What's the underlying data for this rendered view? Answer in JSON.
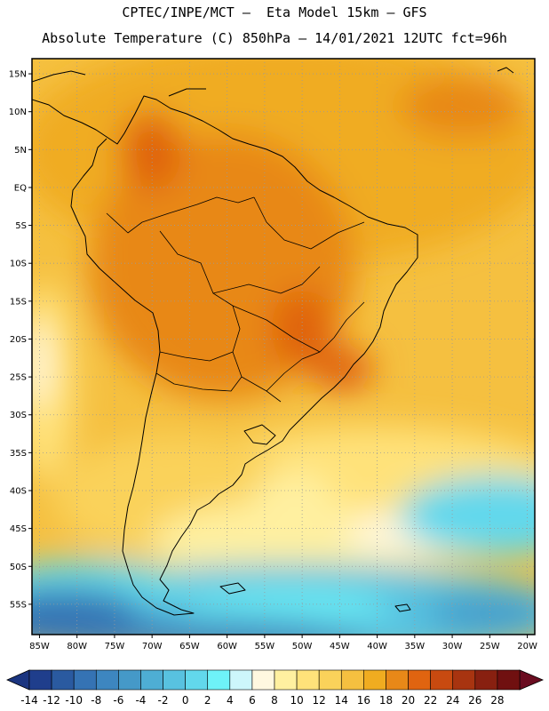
{
  "header": {
    "line1": "CPTEC/INPE/MCT –  Eta Model 15km – GFS",
    "line2": "Absolute Temperature (C) 850hPa – 14/01/2021 12UTC fct=96h"
  },
  "map": {
    "lon_range": [
      -86,
      -19
    ],
    "lat_range": [
      -59,
      17
    ],
    "lat_ticks": [
      "15N",
      "10N",
      "5N",
      "EQ",
      "5S",
      "10S",
      "15S",
      "20S",
      "25S",
      "30S",
      "35S",
      "40S",
      "45S",
      "50S",
      "55S"
    ],
    "lon_ticks": [
      "85W",
      "80W",
      "75W",
      "70W",
      "65W",
      "60W",
      "55W",
      "50W",
      "45W",
      "40W",
      "35W",
      "30W",
      "25W",
      "20W"
    ],
    "grid": true
  },
  "colorbar": {
    "labels": [
      "-14",
      "-12",
      "-10",
      "-8",
      "-6",
      "-4",
      "-2",
      "0",
      "2",
      "4",
      "6",
      "8",
      "10",
      "12",
      "14",
      "16",
      "18",
      "20",
      "22",
      "24",
      "26",
      "28"
    ],
    "colors": [
      "#1f3e8c",
      "#2a5aa0",
      "#3573b4",
      "#3d86c0",
      "#4599c8",
      "#4eaed4",
      "#58c2e0",
      "#62d8ec",
      "#6ef2f8",
      "#cdf6fb",
      "#fff8e0",
      "#fff0a0",
      "#ffe27a",
      "#fad25a",
      "#f5c040",
      "#f0ac20",
      "#e88818",
      "#e06410",
      "#c84a10",
      "#a83410",
      "#882010",
      "#701010"
    ],
    "under_color": "#1b3580",
    "over_color": "#6a0c20"
  }
}
